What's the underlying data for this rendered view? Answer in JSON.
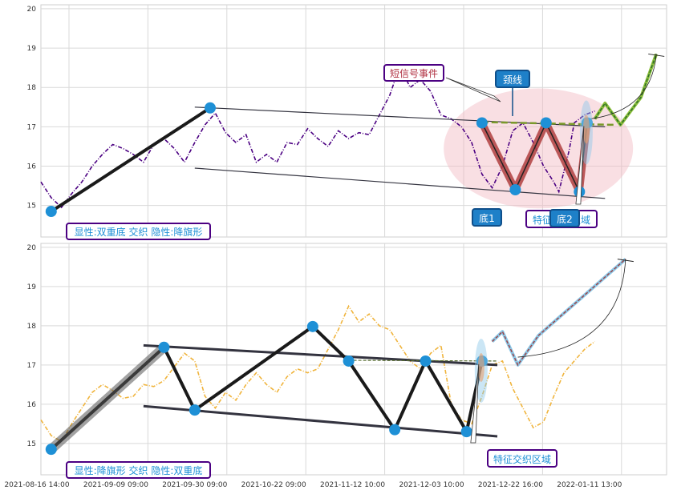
{
  "chart_data": {
    "type": "line",
    "x_ticks": [
      "2021-08-16 14:00",
      "2021-09-09 09:00",
      "2021-09-30 09:00",
      "2021-10-22 09:00",
      "2021-11-12 10:00",
      "2021-12-03 10:00",
      "2021-12-22 16:00",
      "2022-01-11 13:00"
    ],
    "panels": [
      {
        "ylim": [
          14.2,
          20.1
        ],
        "yticks": [
          15,
          16,
          17,
          18,
          19,
          20
        ],
        "line_color": "#4b0082",
        "series": [
          [
            0,
            15.6
          ],
          [
            2,
            15.2
          ],
          [
            4,
            14.95
          ],
          [
            6,
            15.3
          ],
          [
            8,
            15.6
          ],
          [
            10,
            16.0
          ],
          [
            12,
            16.3
          ],
          [
            14,
            16.55
          ],
          [
            16,
            16.45
          ],
          [
            18,
            16.3
          ],
          [
            20,
            16.1
          ],
          [
            22,
            16.55
          ],
          [
            24,
            16.7
          ],
          [
            26,
            16.45
          ],
          [
            28,
            16.1
          ],
          [
            30,
            16.6
          ],
          [
            32,
            17.05
          ],
          [
            34,
            17.35
          ],
          [
            36,
            16.85
          ],
          [
            38,
            16.6
          ],
          [
            40,
            16.8
          ],
          [
            42,
            16.1
          ],
          [
            44,
            16.3
          ],
          [
            46,
            16.1
          ],
          [
            48,
            16.6
          ],
          [
            50,
            16.55
          ],
          [
            52,
            16.95
          ],
          [
            54,
            16.7
          ],
          [
            56,
            16.5
          ],
          [
            58,
            16.9
          ],
          [
            60,
            16.7
          ],
          [
            62,
            16.85
          ],
          [
            64,
            16.8
          ],
          [
            66,
            17.3
          ],
          [
            68,
            17.8
          ],
          [
            70,
            18.55
          ],
          [
            72,
            18.0
          ],
          [
            74,
            18.2
          ],
          [
            76,
            17.9
          ],
          [
            78,
            17.3
          ],
          [
            80,
            17.2
          ],
          [
            82,
            17.0
          ],
          [
            84,
            16.6
          ],
          [
            86,
            15.8
          ],
          [
            88,
            15.45
          ],
          [
            90,
            16.0
          ],
          [
            92,
            16.9
          ],
          [
            94,
            17.1
          ],
          [
            96,
            16.6
          ],
          [
            98,
            16.0
          ],
          [
            100,
            15.6
          ],
          [
            101,
            15.35
          ],
          [
            103,
            16.4
          ],
          [
            104,
            17.1
          ],
          [
            106,
            17.3
          ],
          [
            108,
            17.4
          ]
        ],
        "trend": [
          [
            2,
            14.85
          ],
          [
            33,
            17.48
          ]
        ],
        "channel_upper": [
          [
            30,
            17.5
          ],
          [
            110,
            17.0
          ]
        ],
        "channel_lower": [
          [
            30,
            15.95
          ],
          [
            110,
            15.18
          ]
        ],
        "pattern": [
          [
            86,
            17.1
          ],
          [
            92.5,
            15.4
          ],
          [
            98.5,
            17.1
          ],
          [
            105,
            15.35
          ],
          [
            106.5,
            17.1
          ]
        ],
        "neckline": [
          [
            86,
            17.12
          ],
          [
            112,
            17.05
          ]
        ],
        "forecast": [
          [
            108,
            17.2
          ],
          [
            110,
            17.6
          ],
          [
            113,
            17.05
          ],
          [
            117,
            17.75
          ],
          [
            120,
            18.85
          ]
        ],
        "forecast_arrow": [
          [
            107,
            17.2
          ],
          [
            120,
            18.85
          ]
        ],
        "nodes": [
          [
            2,
            14.85
          ],
          [
            33,
            17.48
          ],
          [
            86,
            17.1
          ],
          [
            92.5,
            15.4
          ],
          [
            98.5,
            17.1
          ],
          [
            105,
            15.35
          ],
          [
            106.5,
            17.1
          ]
        ],
        "labels": {
          "hidden": "显性:双重底 交织 隐性:降旗形",
          "event": "短信号事件",
          "neckline": "颈线",
          "bottom1": "底1",
          "bottom2": "底2",
          "feature": "特征交织区域"
        }
      },
      {
        "ylim": [
          14.2,
          20.1
        ],
        "yticks": [
          15,
          16,
          17,
          18,
          19,
          20
        ],
        "line_color": "#f0b43c",
        "series": [
          [
            0,
            15.6
          ],
          [
            2,
            15.2
          ],
          [
            4,
            15.05
          ],
          [
            6,
            15.5
          ],
          [
            8,
            15.9
          ],
          [
            10,
            16.3
          ],
          [
            12,
            16.5
          ],
          [
            14,
            16.35
          ],
          [
            16,
            16.15
          ],
          [
            18,
            16.2
          ],
          [
            20,
            16.5
          ],
          [
            22,
            16.45
          ],
          [
            24,
            16.6
          ],
          [
            26,
            16.95
          ],
          [
            28,
            17.3
          ],
          [
            30,
            17.1
          ],
          [
            32,
            16.2
          ],
          [
            34,
            15.9
          ],
          [
            36,
            16.3
          ],
          [
            38,
            16.1
          ],
          [
            40,
            16.5
          ],
          [
            42,
            16.8
          ],
          [
            44,
            16.5
          ],
          [
            46,
            16.3
          ],
          [
            48,
            16.7
          ],
          [
            50,
            16.9
          ],
          [
            52,
            16.8
          ],
          [
            54,
            16.9
          ],
          [
            56,
            17.4
          ],
          [
            58,
            17.9
          ],
          [
            60,
            18.5
          ],
          [
            62,
            18.1
          ],
          [
            64,
            18.3
          ],
          [
            66,
            18.0
          ],
          [
            68,
            17.9
          ],
          [
            70,
            17.5
          ],
          [
            72,
            17.1
          ],
          [
            74,
            16.9
          ],
          [
            76,
            17.3
          ],
          [
            78,
            17.5
          ],
          [
            80,
            16.0
          ],
          [
            82,
            15.6
          ],
          [
            84,
            15.5
          ],
          [
            86,
            16.2
          ],
          [
            88,
            17.0
          ],
          [
            90,
            17.1
          ],
          [
            92,
            16.4
          ],
          [
            94,
            15.9
          ],
          [
            96,
            15.4
          ],
          [
            98,
            15.55
          ],
          [
            100,
            16.2
          ],
          [
            102,
            16.8
          ],
          [
            104,
            17.1
          ],
          [
            106,
            17.4
          ],
          [
            108,
            17.6
          ]
        ],
        "trend": [
          [
            2,
            14.85
          ],
          [
            24,
            17.45
          ],
          [
            30,
            15.85
          ],
          [
            53,
            17.98
          ],
          [
            60,
            17.1
          ],
          [
            69,
            15.35
          ],
          [
            75,
            17.1
          ],
          [
            83,
            15.3
          ],
          [
            86,
            17.1
          ]
        ],
        "channel_upper": [
          [
            20,
            17.5
          ],
          [
            89,
            17.0
          ]
        ],
        "channel_lower": [
          [
            20,
            15.95
          ],
          [
            89,
            15.18
          ]
        ],
        "dashed_line": [
          [
            60,
            17.12
          ],
          [
            89,
            17.1
          ]
        ],
        "forecast": [
          [
            88,
            17.6
          ],
          [
            90,
            17.85
          ],
          [
            93,
            17.0
          ],
          [
            97,
            17.75
          ],
          [
            114,
            19.7
          ]
        ],
        "forecast_arrow": [
          [
            93,
            17.2
          ],
          [
            114,
            19.7
          ]
        ],
        "nodes": [
          [
            2,
            14.85
          ],
          [
            24,
            17.45
          ],
          [
            30,
            15.85
          ],
          [
            53,
            17.98
          ],
          [
            60,
            17.1
          ],
          [
            69,
            15.35
          ],
          [
            75,
            17.1
          ],
          [
            83,
            15.3
          ],
          [
            86,
            17.1
          ]
        ],
        "labels": {
          "hidden": "显性:降旗形 交织 隐性:双重底",
          "feature": "特征交织区域"
        }
      }
    ]
  },
  "colors": {
    "grid": "#d9d9d9",
    "trend": "#1a1a1a",
    "channel": "#33333f",
    "node": "#1e90d6",
    "box_border": "#4b0082",
    "box_text": "#1e90d6",
    "event_text": "#b03040",
    "blue_fill": "#1e80c8",
    "pattern_fill": "#b04040",
    "ellipse": "#f2b8c0",
    "neckline": "#7a9a2a",
    "forecast_line": "#2a5a8a",
    "forecast_fill": "#8bc8e8"
  }
}
